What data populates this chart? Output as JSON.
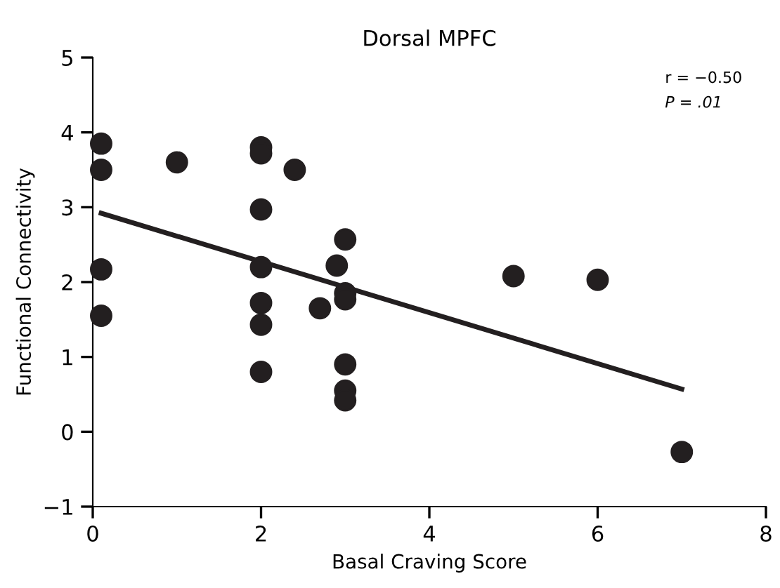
{
  "chart_data": {
    "type": "scatter",
    "title": "Dorsal MPFC",
    "xlabel": "Basal Craving Score",
    "ylabel": "Functional Connectivity",
    "annotations": [
      "r = −0.50",
      "P = .01"
    ],
    "xlim": [
      0,
      8
    ],
    "xticks": [
      0,
      2,
      4,
      6,
      8
    ],
    "ylim": [
      -1,
      5
    ],
    "yticks": [
      -1,
      0,
      1,
      2,
      3,
      4,
      5
    ],
    "grid": false,
    "legend": false,
    "series": [
      {
        "marker": "circle",
        "color": "#231f20",
        "x": [
          0.1,
          0.1,
          0.1,
          0.1,
          1,
          2,
          2,
          2,
          2,
          2,
          2,
          2,
          2.4,
          2.7,
          2.9,
          3,
          3,
          3,
          3,
          3,
          3,
          5,
          6,
          7
        ],
        "values": [
          3.85,
          3.5,
          2.17,
          1.55,
          3.6,
          3.8,
          3.72,
          2.97,
          2.2,
          1.72,
          1.43,
          0.8,
          3.5,
          1.65,
          2.22,
          2.57,
          1.85,
          1.77,
          0.9,
          0.55,
          0.42,
          2.08,
          2.03,
          -0.27
        ]
      },
      {
        "type": "line",
        "color": "#231f20",
        "line_style": "solid",
        "marker": "none",
        "x": [
          0.1,
          7
        ],
        "values": [
          2.92,
          0.57
        ]
      }
    ]
  }
}
